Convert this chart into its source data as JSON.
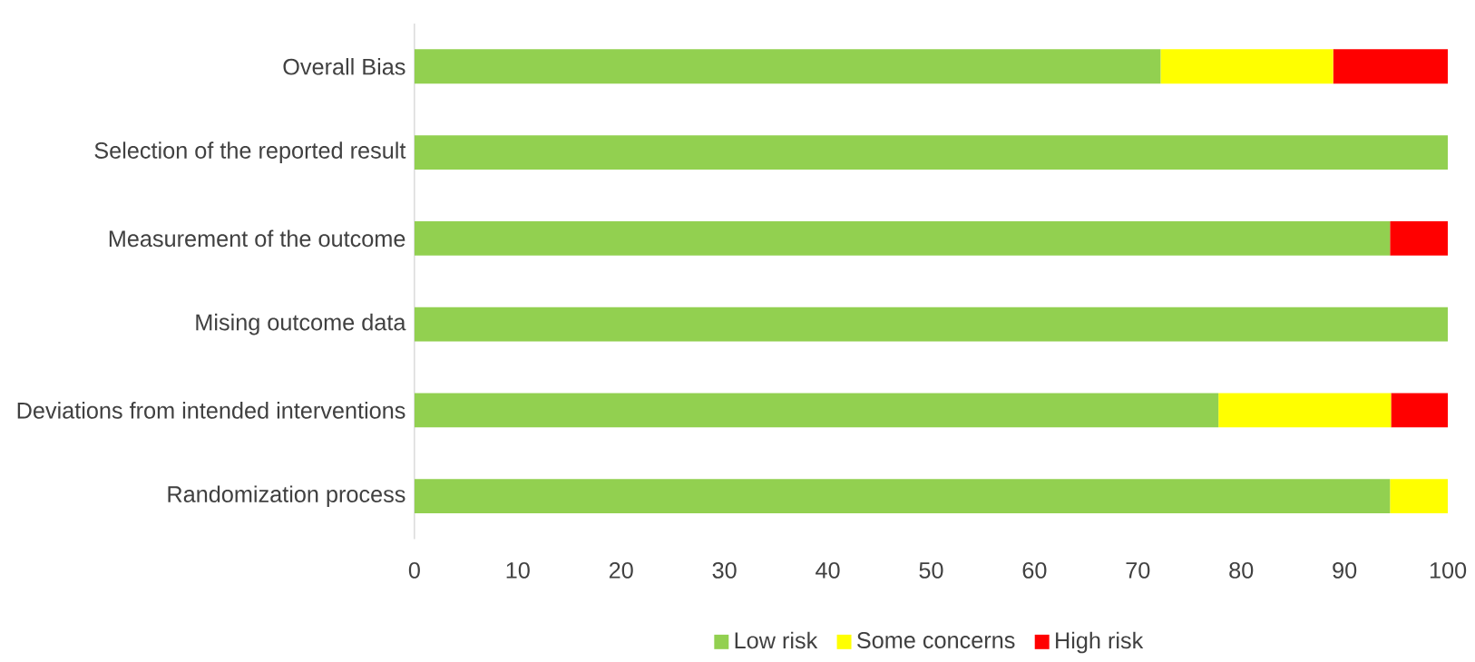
{
  "chart_data": {
    "type": "bar",
    "orientation": "horizontal",
    "stacked": true,
    "categories": [
      "Overall Bias",
      "Selection of the reported result",
      "Measurement of the outcome",
      "Mising outcome data",
      "Deviations from intended interventions",
      "Randomization process"
    ],
    "series": [
      {
        "name": "Low risk",
        "color": "#92d050",
        "values": [
          72.2,
          100,
          94.4,
          100,
          77.8,
          94.4
        ]
      },
      {
        "name": "Some concerns",
        "color": "#ffff00",
        "values": [
          16.7,
          0,
          0,
          0,
          16.7,
          5.6
        ]
      },
      {
        "name": "High risk",
        "color": "#ff0000",
        "values": [
          11.1,
          0,
          5.6,
          0,
          5.6,
          0
        ]
      }
    ],
    "xlim": [
      0,
      100
    ],
    "xticks": [
      0,
      10,
      20,
      30,
      40,
      50,
      60,
      70,
      80,
      90,
      100
    ],
    "legend": "bottom"
  }
}
